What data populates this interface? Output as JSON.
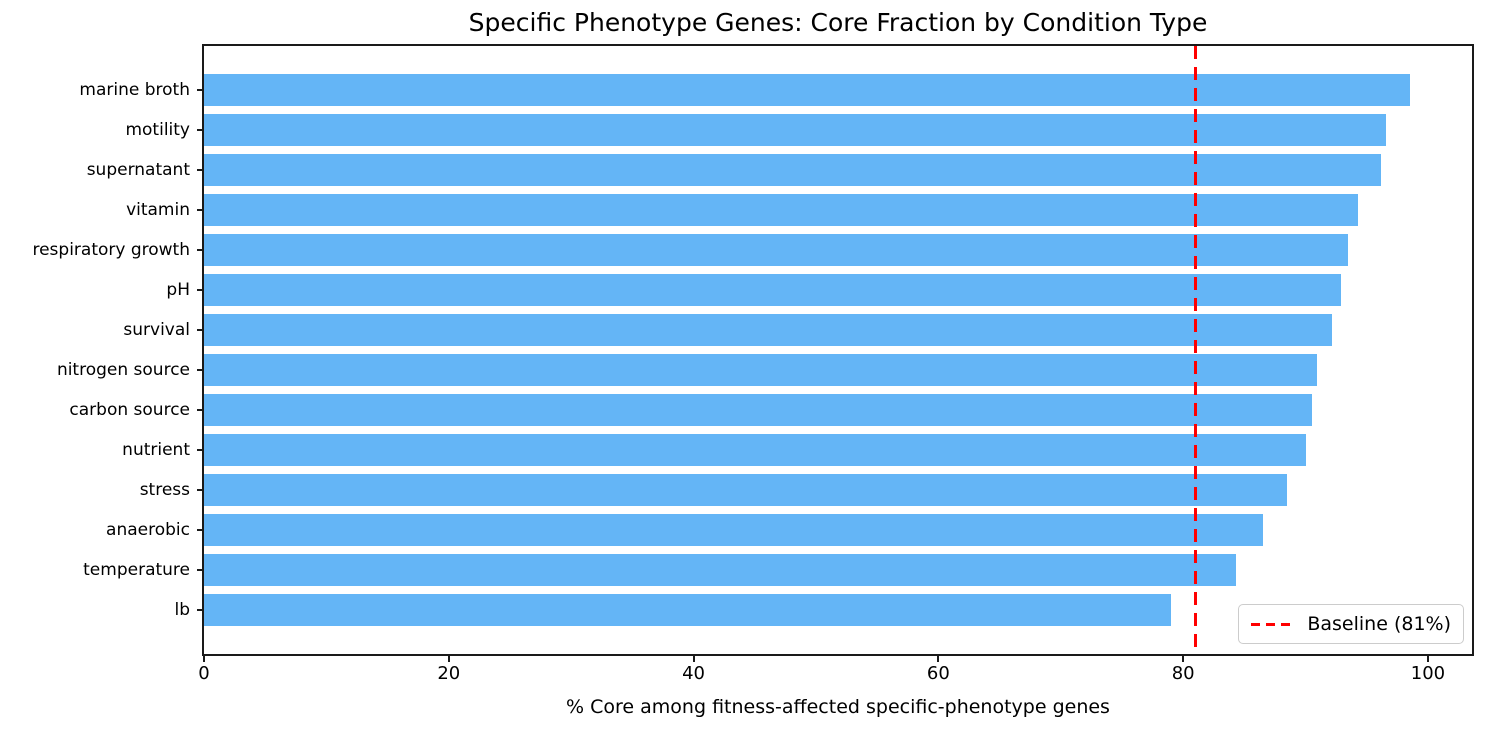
{
  "chart_data": {
    "type": "bar",
    "orientation": "horizontal",
    "title": "Specific Phenotype Genes: Core Fraction by Condition Type",
    "xlabel": "% Core among fitness-affected specific-phenotype genes",
    "categories": [
      "marine broth",
      "motility",
      "supernatant",
      "vitamin",
      "respiratory growth",
      "pH",
      "survival",
      "nitrogen source",
      "carbon source",
      "nutrient",
      "stress",
      "anaerobic",
      "temperature",
      "lb"
    ],
    "values": [
      98.5,
      96.6,
      96.2,
      94.3,
      93.5,
      92.9,
      92.2,
      90.9,
      90.5,
      90.0,
      88.5,
      86.5,
      84.3,
      79.0
    ],
    "xlim": [
      0,
      103.6
    ],
    "xticks": [
      0,
      20,
      40,
      60,
      80,
      100
    ],
    "grid": false,
    "bar_color": "#64b5f6",
    "baseline": {
      "value": 81,
      "color": "#ff0000",
      "linestyle": "dashed"
    },
    "legend": {
      "position": "lower right",
      "entries": [
        {
          "label": "Baseline (81%)",
          "color": "#ff0000",
          "linestyle": "dashed"
        }
      ]
    }
  }
}
